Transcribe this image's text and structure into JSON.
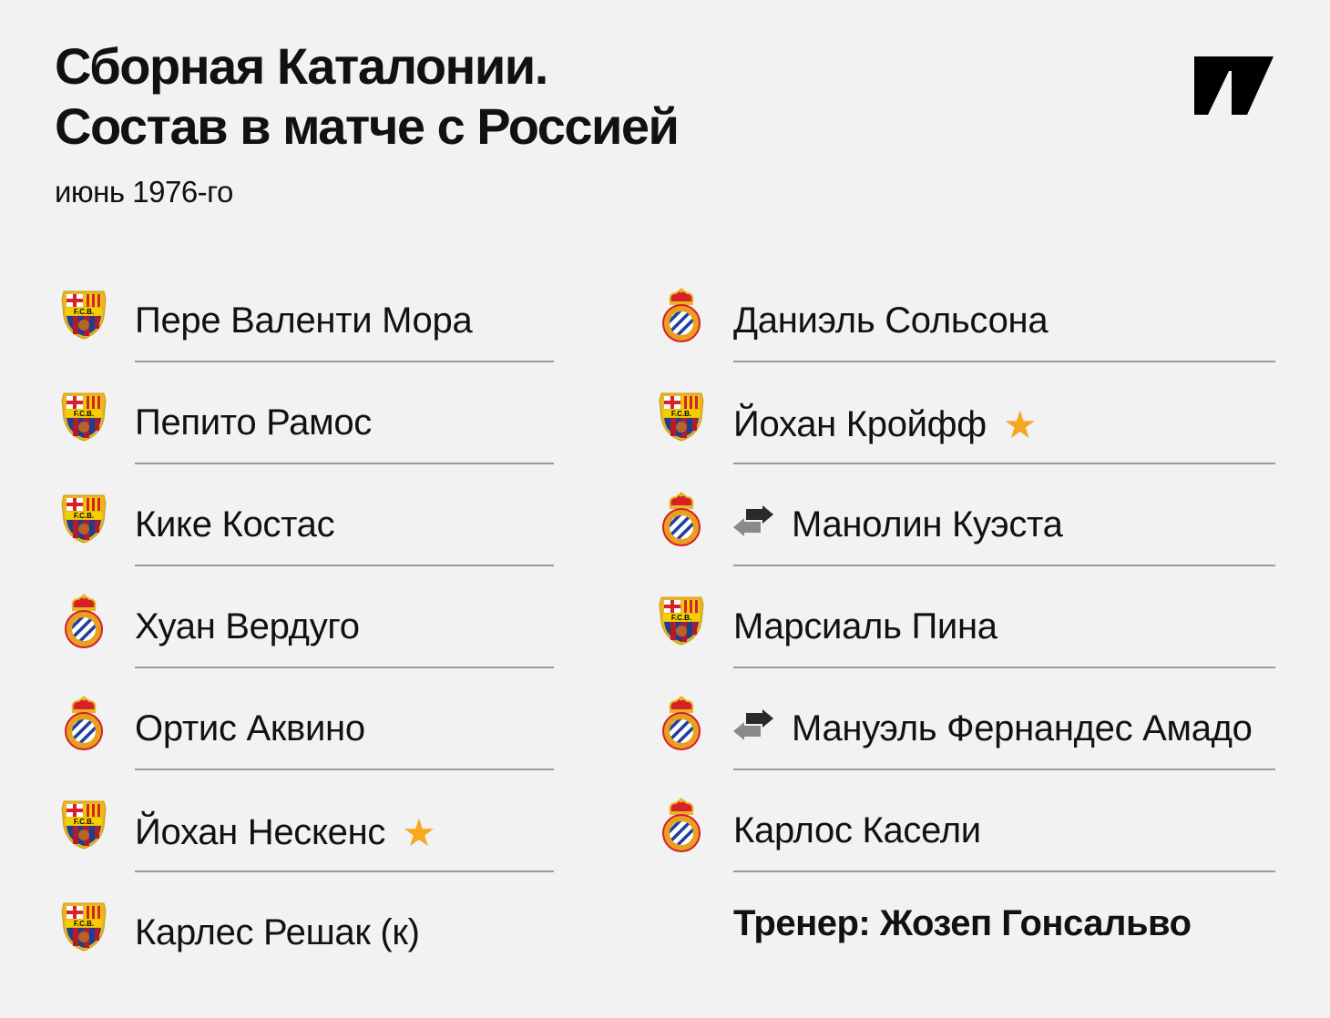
{
  "header": {
    "title_line1": "Сборная Каталонии.",
    "title_line2": "Состав в матче с Россией",
    "subtitle": "июнь 1976-го",
    "logo": "meduza-logo"
  },
  "colors": {
    "background": "#f2f2f2",
    "star": "#f7a823",
    "divider": "#9a9a9a"
  },
  "left_column": [
    {
      "name": "Пере Валенти Мора",
      "club": "barcelona",
      "star": false,
      "sub": false
    },
    {
      "name": "Пепито Рамос",
      "club": "barcelona",
      "star": false,
      "sub": false
    },
    {
      "name": "Кике Костас",
      "club": "barcelona",
      "star": false,
      "sub": false
    },
    {
      "name": "Хуан Вердуго",
      "club": "espanyol",
      "star": false,
      "sub": false
    },
    {
      "name": "Ортис Аквино",
      "club": "espanyol",
      "star": false,
      "sub": false
    },
    {
      "name": "Йохан Нескенс",
      "club": "barcelona",
      "star": true,
      "sub": false
    },
    {
      "name": "Карлес Решак (к)",
      "club": "barcelona",
      "star": false,
      "sub": false
    }
  ],
  "right_column": [
    {
      "name": "Даниэль Сольсона",
      "club": "espanyol",
      "star": false,
      "sub": false
    },
    {
      "name": "Йохан Кройфф",
      "club": "barcelona",
      "star": true,
      "sub": false
    },
    {
      "name": "Манолин Куэста",
      "club": "espanyol",
      "star": false,
      "sub": true
    },
    {
      "name": "Марсиаль Пина",
      "club": "barcelona",
      "star": false,
      "sub": false
    },
    {
      "name": "Мануэль Фернандес Амадо",
      "club": "espanyol",
      "star": false,
      "sub": true
    },
    {
      "name": "Карлос Касели",
      "club": "espanyol",
      "star": false,
      "sub": false
    }
  ],
  "coach": "Тренер: Жозеп Гонсальво",
  "icons": {
    "star": "★",
    "substitution": "swap-arrows-icon"
  }
}
